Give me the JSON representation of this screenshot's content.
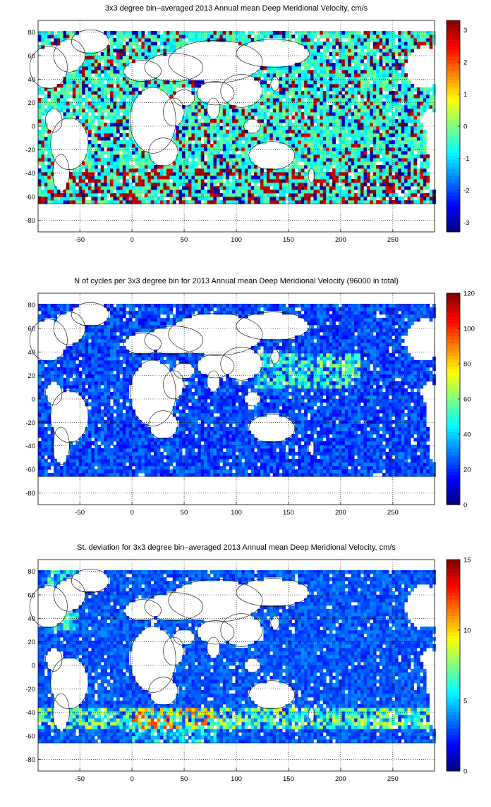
{
  "chart_data": [
    {
      "type": "heatmap",
      "title": "3x3 degree bin–averaged 2013 Annual mean Deep Meridional Velocity, cm/s",
      "bin_size_deg": 3,
      "xlim": [
        -90,
        290
      ],
      "ylim": [
        -90,
        90
      ],
      "x_ticks": [
        -50,
        0,
        50,
        100,
        150,
        200,
        250
      ],
      "y_ticks": [
        80,
        60,
        40,
        20,
        0,
        -20,
        -40,
        -60,
        -80
      ],
      "grid": true,
      "colormap": "jet",
      "colorbar": {
        "min": -3.3,
        "max": 3.3,
        "ticks": [
          3,
          2,
          1,
          0,
          -1,
          -2,
          -3
        ]
      },
      "field": "meridional_velocity"
    },
    {
      "type": "heatmap",
      "title": "N of cycles per 3x3 degree bin for 2013 Annual mean Deep Meridional Velocity (96000 in total)",
      "bin_size_deg": 3,
      "xlim": [
        -90,
        290
      ],
      "ylim": [
        -90,
        90
      ],
      "x_ticks": [
        -50,
        0,
        50,
        100,
        150,
        200,
        250
      ],
      "y_ticks": [
        80,
        60,
        40,
        20,
        0,
        -20,
        -40,
        -60,
        -80
      ],
      "grid": true,
      "colormap": "jet",
      "colorbar": {
        "min": 0,
        "max": 120,
        "ticks": [
          120,
          100,
          80,
          60,
          40,
          20,
          0
        ]
      },
      "field": "cycle_count"
    },
    {
      "type": "heatmap",
      "title": "St. deviation for 3x3 degree bin–averaged 2013 Annual mean Deep Meridional Velocity, cm/s",
      "bin_size_deg": 3,
      "xlim": [
        -90,
        290
      ],
      "ylim": [
        -90,
        90
      ],
      "x_ticks": [
        -50,
        0,
        50,
        100,
        150,
        200,
        250
      ],
      "y_ticks": [
        80,
        60,
        40,
        20,
        0,
        -20,
        -40,
        -60,
        -80
      ],
      "grid": true,
      "colormap": "jet",
      "colorbar": {
        "min": 0,
        "max": 15,
        "ticks": [
          15,
          10,
          5,
          0
        ]
      },
      "field": "std_dev"
    }
  ]
}
